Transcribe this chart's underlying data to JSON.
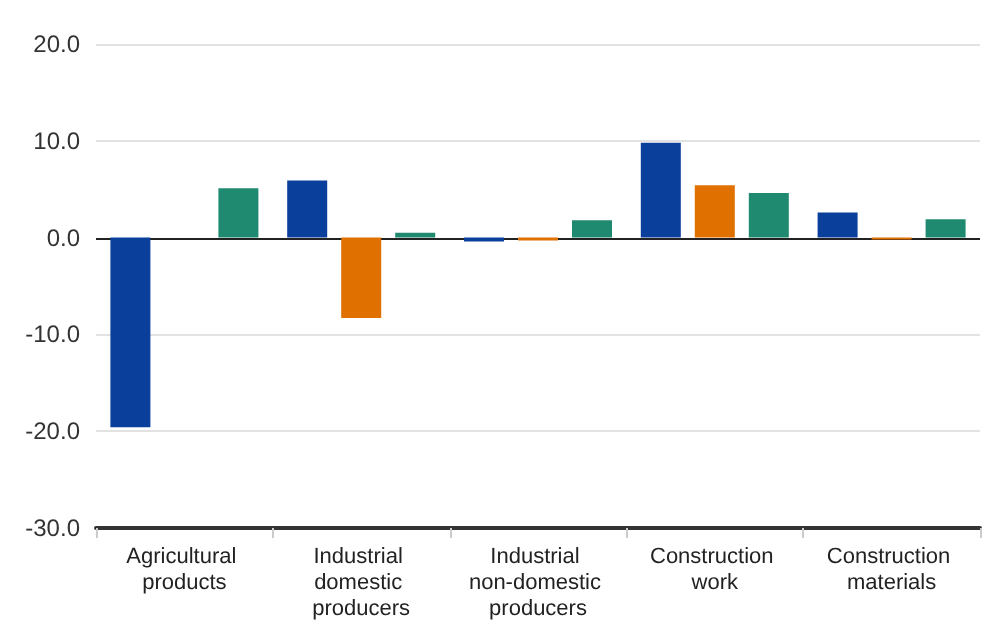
{
  "chart_data": {
    "type": "bar",
    "categories": [
      "Agricultural products",
      "Industrial domestic producers",
      "Industrial non-domestic producers",
      "Construction work",
      "Construction materials"
    ],
    "series": [
      {
        "color": "#0b3f9c",
        "values": [
          -19.6,
          5.9,
          -0.4,
          9.8,
          2.6
        ]
      },
      {
        "color": "#e07000",
        "values": [
          null,
          -8.3,
          -0.3,
          5.4,
          -0.2
        ]
      },
      {
        "color": "#1f8a70",
        "values": [
          5.1,
          0.5,
          1.8,
          4.6,
          1.9
        ]
      }
    ],
    "ylim": [
      -30,
      20
    ],
    "yticks": [
      {
        "value": -30,
        "label": "-30.0"
      },
      {
        "value": -20,
        "label": "-20.0"
      },
      {
        "value": -10,
        "label": "-10.0"
      },
      {
        "value": 0,
        "label": "0.0"
      },
      {
        "value": 10,
        "label": "10.0"
      },
      {
        "value": 20,
        "label": "20.0"
      }
    ],
    "grid": "y",
    "ref_lines": [
      {
        "axis": "y",
        "value": 0,
        "color": "#222222"
      }
    ]
  }
}
